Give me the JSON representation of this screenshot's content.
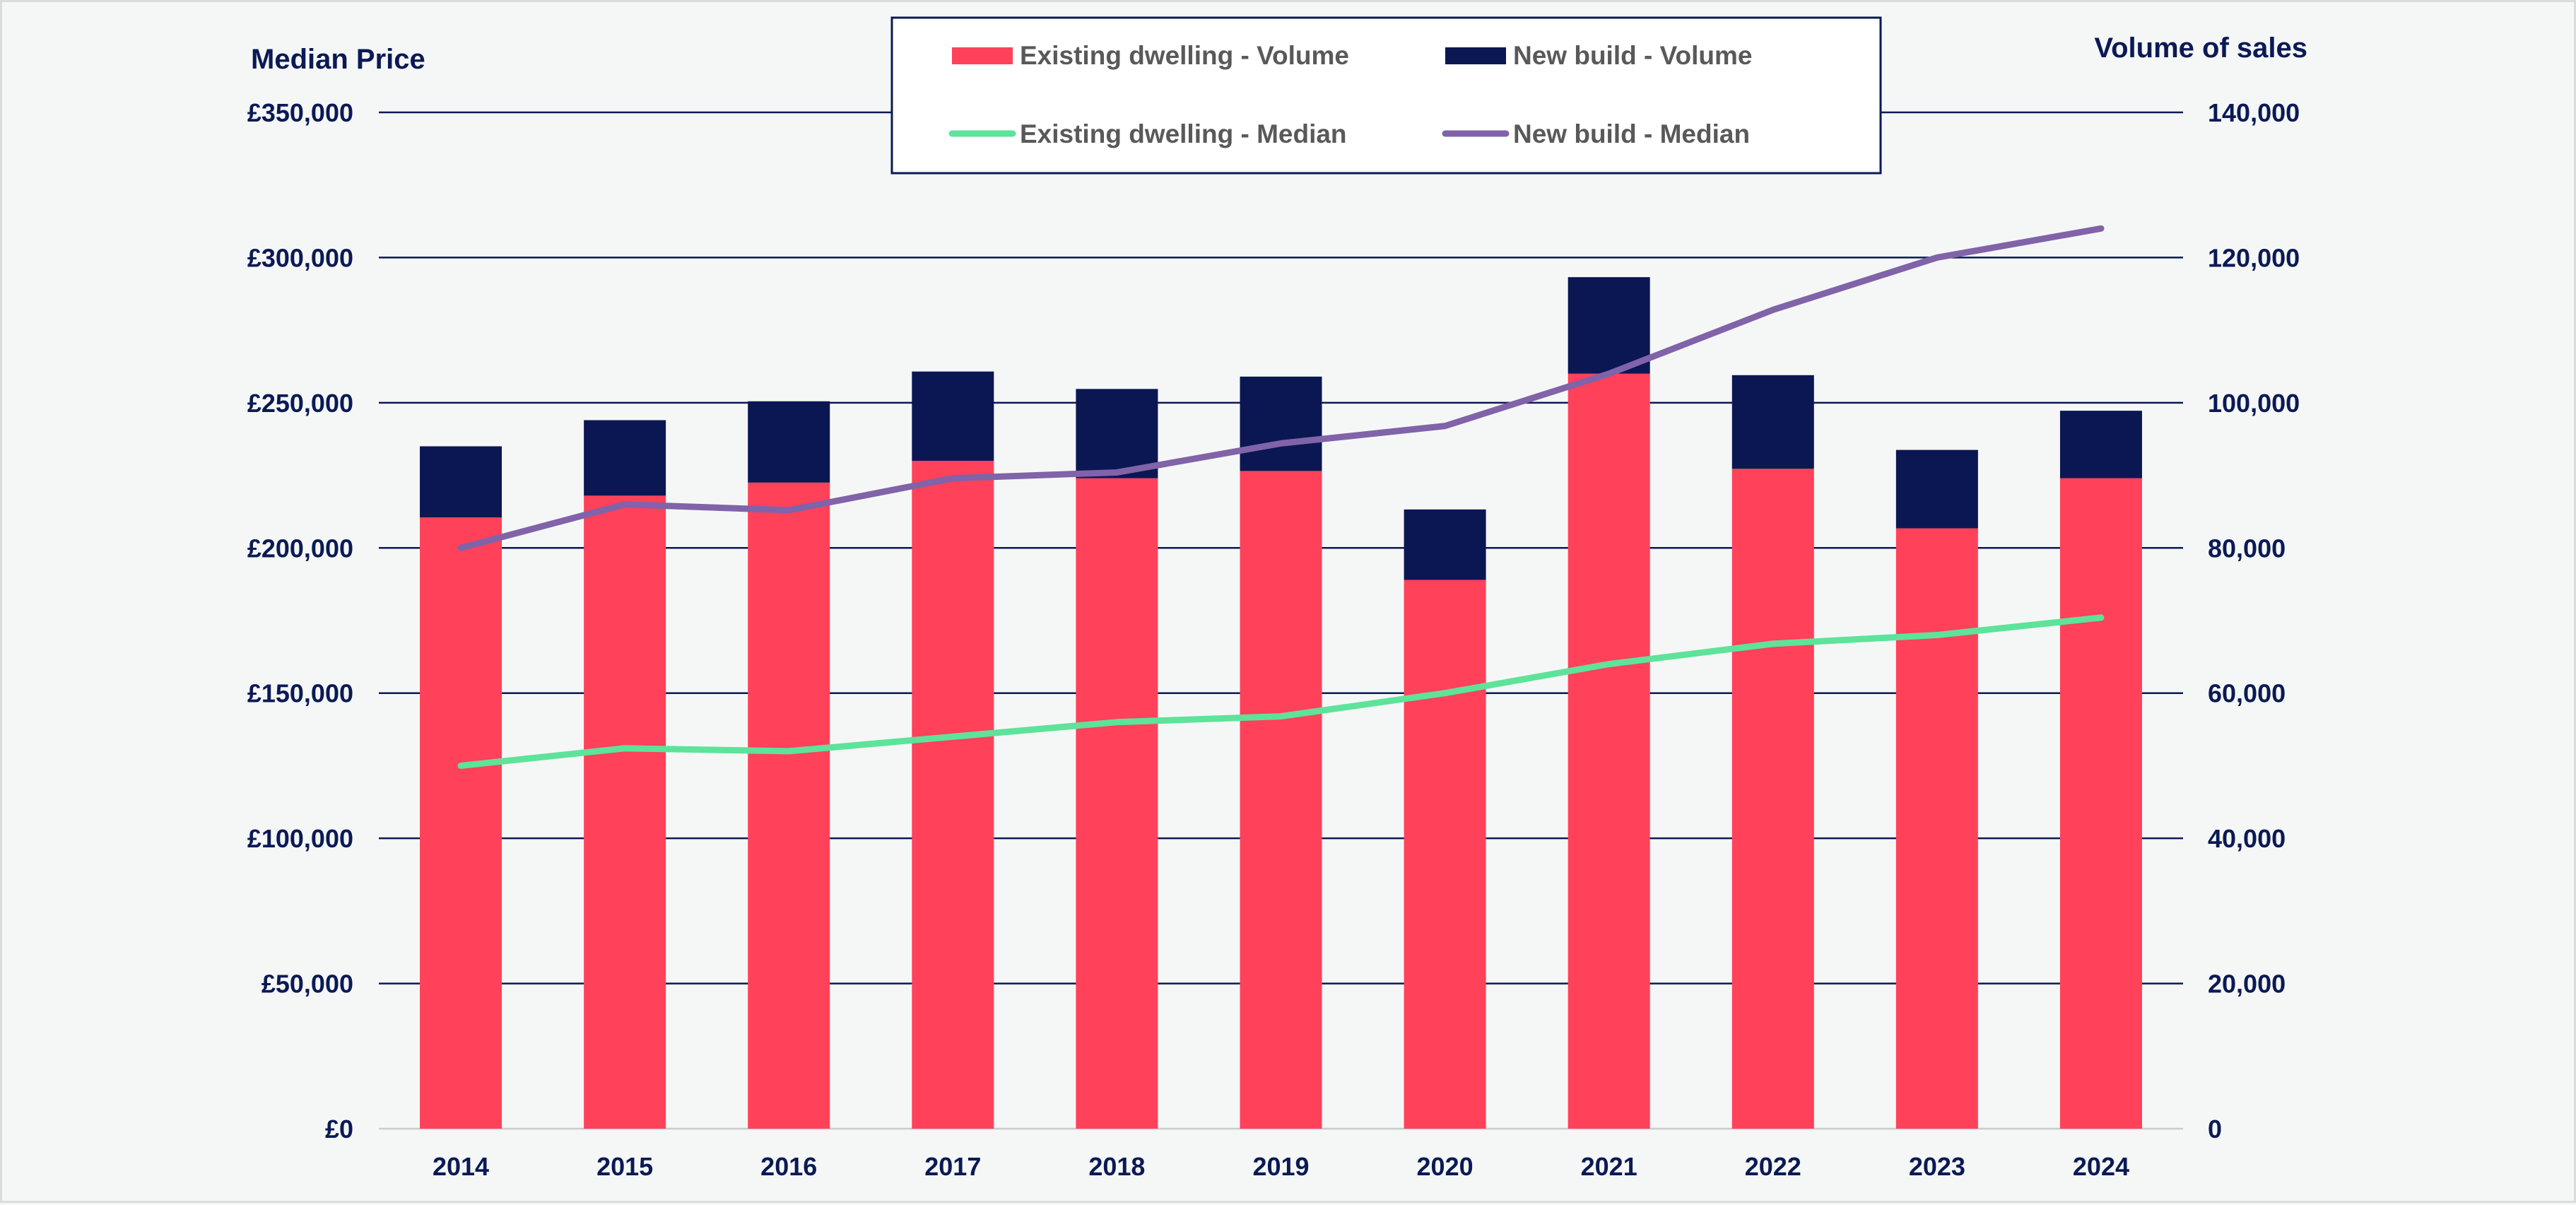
{
  "chart_data": {
    "type": "bar",
    "stacked": true,
    "categories": [
      "2014",
      "2015",
      "2016",
      "2017",
      "2018",
      "2019",
      "2020",
      "2021",
      "2022",
      "2023",
      "2024"
    ],
    "series": [
      {
        "name": "Existing dwelling - Volume",
        "kind": "bar",
        "axis": "right",
        "color": "#ff415a",
        "values": [
          84200,
          87200,
          89000,
          92000,
          89600,
          90600,
          75600,
          104000,
          90900,
          82700,
          89600
        ]
      },
      {
        "name": "New build - Volume",
        "kind": "bar",
        "axis": "right",
        "color": "#0a1752",
        "values": [
          9800,
          10400,
          11200,
          12300,
          12300,
          13000,
          9700,
          13300,
          12900,
          10800,
          9300
        ]
      },
      {
        "name": "Existing dwelling - Median",
        "kind": "line",
        "axis": "left",
        "color": "#5de39a",
        "values": [
          125000,
          131000,
          130000,
          135000,
          140000,
          142000,
          150000,
          160000,
          167000,
          170000,
          176000
        ]
      },
      {
        "name": "New build - Median",
        "kind": "line",
        "axis": "left",
        "color": "#8063a8",
        "values": [
          200000,
          215000,
          213000,
          224000,
          226000,
          236000,
          242000,
          260000,
          282000,
          300000,
          310000
        ]
      }
    ],
    "y_left": {
      "title": "Median Price",
      "range": [
        0,
        350000
      ],
      "ticks": [
        "£0",
        "£50,000",
        "£100,000",
        "£150,000",
        "£200,000",
        "£250,000",
        "£300,000",
        "£350,000"
      ]
    },
    "y_right": {
      "title": "Volume of sales",
      "range": [
        0,
        140000
      ],
      "ticks": [
        "0",
        "20,000",
        "40,000",
        "60,000",
        "80,000",
        "100,000",
        "120,000",
        "140,000"
      ]
    },
    "legend_position": "top-center",
    "gridlines": true
  }
}
